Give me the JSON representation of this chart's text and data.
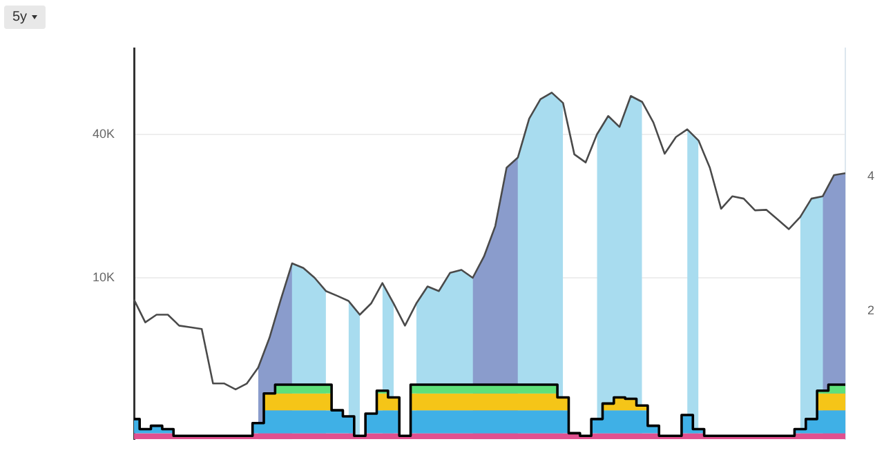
{
  "chart_data": {
    "type": "line",
    "categories": [
      null,
      null,
      null,
      null,
      null,
      null,
      null,
      null,
      null,
      null,
      null,
      null,
      null,
      null,
      null,
      null,
      null,
      null,
      null,
      null,
      null,
      null,
      null,
      null,
      null,
      null,
      null,
      null,
      null,
      null,
      null,
      null,
      null,
      null,
      null,
      null,
      null,
      null,
      null,
      null,
      null,
      null,
      null,
      null,
      null,
      null,
      null,
      null,
      null,
      null,
      null,
      null,
      null,
      null,
      null,
      null,
      null,
      null,
      null,
      null,
      null,
      null,
      null,
      null
    ],
    "series": [
      {
        "type": "area",
        "color": "#a8dcef",
        "values": [
          null,
          null,
          null,
          null,
          null,
          null,
          null,
          null,
          null,
          null,
          null,
          4200,
          5600,
          8100,
          11500,
          11000,
          10000,
          8800,
          null,
          8000,
          7000,
          null,
          9500,
          7800,
          null,
          7800,
          9200,
          8800,
          10500,
          10800,
          10000,
          12300,
          16500,
          29000,
          32000,
          46600,
          56200,
          59900,
          54200,
          null,
          null,
          40000,
          47800,
          43000,
          58000,
          54800,
          null,
          null,
          null,
          42000,
          37700,
          null,
          null,
          null,
          null,
          null,
          null,
          null,
          null,
          18000,
          21500,
          22000,
          27000,
          27500
        ]
      },
      {
        "type": "area",
        "color": "#8a9ccc",
        "values": [
          null,
          null,
          null,
          null,
          null,
          null,
          null,
          null,
          null,
          null,
          null,
          4200,
          5600,
          8100,
          11500,
          null,
          null,
          null,
          null,
          null,
          null,
          null,
          null,
          null,
          null,
          null,
          null,
          null,
          null,
          null,
          10000,
          12300,
          16500,
          29000,
          32000,
          null,
          null,
          null,
          null,
          null,
          null,
          null,
          null,
          null,
          null,
          null,
          null,
          null,
          null,
          null,
          null,
          null,
          null,
          null,
          null,
          null,
          null,
          null,
          null,
          null,
          null,
          22000,
          27000,
          27500
        ]
      },
      {
        "type": "line",
        "color": "#4a4a4a",
        "values": [
          8100,
          6500,
          7000,
          7000,
          6300,
          6200,
          6100,
          3600,
          3600,
          3400,
          3600,
          4200,
          5600,
          8100,
          11500,
          11000,
          10000,
          8800,
          8400,
          8000,
          7000,
          7800,
          9500,
          7800,
          6300,
          7800,
          9200,
          8800,
          10500,
          10800,
          10000,
          12300,
          16500,
          29000,
          32000,
          46600,
          56200,
          59900,
          54200,
          33000,
          30500,
          40000,
          47800,
          43000,
          58000,
          54800,
          44900,
          33200,
          39000,
          42000,
          37700,
          29000,
          19500,
          22000,
          21500,
          19200,
          19300,
          17600,
          16000,
          18000,
          21500,
          22000,
          27000,
          27500
        ]
      },
      {
        "type": "step",
        "axis": "y2",
        "color": "#000000",
        "values": [
          0.4,
          0.25,
          0.3,
          0.25,
          0.15,
          0.15,
          0.15,
          0.15,
          0.15,
          0.15,
          0.15,
          0.34,
          0.78,
          0.91,
          0.91,
          0.91,
          0.91,
          0.91,
          0.53,
          0.44,
          0.15,
          0.48,
          0.82,
          0.72,
          0.15,
          0.91,
          0.91,
          0.91,
          0.91,
          0.91,
          0.91,
          0.91,
          0.91,
          0.91,
          0.91,
          0.91,
          0.91,
          0.91,
          0.72,
          0.19,
          0.15,
          0.4,
          0.63,
          0.72,
          0.7,
          0.6,
          0.3,
          0.15,
          0.15,
          0.46,
          0.25,
          0.15,
          0.15,
          0.15,
          0.15,
          0.15,
          0.15,
          0.15,
          0.15,
          0.25,
          0.4,
          0.82,
          0.91,
          0.91
        ]
      }
    ],
    "log": true,
    "ylim": [
      2100,
      92000
    ],
    "yticks": [
      {
        "value": 10000,
        "label": "10K"
      },
      {
        "value": 40000,
        "label": "40K"
      }
    ],
    "y2lim": [
      0.1,
      5.9
    ],
    "y2ticks": [
      2,
      4
    ],
    "bands": [
      {
        "axis": "y2",
        "from": 0.1,
        "to": 0.19,
        "color": "#e0508f"
      },
      {
        "axis": "y2",
        "from": 0.19,
        "to": 0.53,
        "color": "#3fb0e6"
      },
      {
        "axis": "y2",
        "from": 0.53,
        "to": 0.78,
        "color": "#f5c518"
      },
      {
        "axis": "y2",
        "from": 0.78,
        "to": 0.95,
        "color": "#5ee07a"
      }
    ],
    "grid": "y",
    "legend": false,
    "marker": "none",
    "line_style": "solid",
    "annotations": [
      "5y"
    ]
  }
}
